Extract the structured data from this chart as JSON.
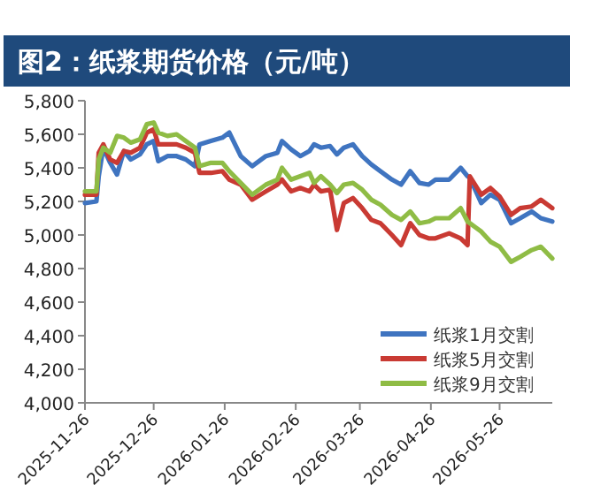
{
  "chart_data": {
    "type": "line",
    "title": "图2：纸浆期货价格（元/吨）",
    "x": [
      "2025-11-26",
      "2025-12-01",
      "2025-12-02",
      "2025-12-04",
      "2025-12-07",
      "2025-12-10",
      "2025-12-13",
      "2025-12-16",
      "2025-12-20",
      "2025-12-23",
      "2025-12-26",
      "2025-12-28",
      "2026-01-01",
      "2026-01-05",
      "2026-01-09",
      "2026-01-13",
      "2026-01-15",
      "2026-01-20",
      "2026-01-25",
      "2026-01-28",
      "2026-02-02",
      "2026-02-07",
      "2026-02-13",
      "2026-02-18",
      "2026-02-20",
      "2026-02-24",
      "2026-02-28",
      "2026-03-04",
      "2026-03-06",
      "2026-03-09",
      "2026-03-13",
      "2026-03-16",
      "2026-03-19",
      "2026-03-23",
      "2026-03-27",
      "2026-03-31",
      "2026-04-04",
      "2026-04-09",
      "2026-04-13",
      "2026-04-17",
      "2026-04-21",
      "2026-04-25",
      "2026-04-28",
      "2026-05-04",
      "2026-05-09",
      "2026-05-12",
      "2026-05-13",
      "2026-05-18",
      "2026-05-22",
      "2026-05-26",
      "2026-05-31",
      "2026-06-04",
      "2026-06-09",
      "2026-06-13",
      "2026-06-18"
    ],
    "series": [
      {
        "name": "纸浆1月交割",
        "color": "#3f74c0",
        "values": [
          5190,
          5200,
          5350,
          5520,
          5430,
          5360,
          5500,
          5450,
          5480,
          5540,
          5560,
          5440,
          5470,
          5470,
          5450,
          5410,
          5540,
          5560,
          5580,
          5610,
          5470,
          5410,
          5470,
          5490,
          5560,
          5510,
          5470,
          5500,
          5540,
          5520,
          5530,
          5480,
          5520,
          5540,
          5470,
          5420,
          5380,
          5330,
          5300,
          5380,
          5310,
          5300,
          5330,
          5330,
          5400,
          5350,
          5340,
          5190,
          5240,
          5210,
          5070,
          5100,
          5140,
          5100,
          5080
        ]
      },
      {
        "name": "纸浆5月交割",
        "color": "#c93a33",
        "values": [
          5240,
          5240,
          5490,
          5540,
          5450,
          5430,
          5500,
          5490,
          5520,
          5610,
          5630,
          5540,
          5540,
          5540,
          5520,
          5490,
          5370,
          5370,
          5380,
          5330,
          5300,
          5210,
          5260,
          5300,
          5330,
          5260,
          5280,
          5260,
          5300,
          5260,
          5270,
          5030,
          5190,
          5220,
          5160,
          5090,
          5070,
          5000,
          4940,
          5070,
          5000,
          4980,
          4980,
          5010,
          4980,
          4940,
          5350,
          5240,
          5280,
          5230,
          5120,
          5160,
          5170,
          5210,
          5160
        ]
      },
      {
        "name": "纸浆9月交割",
        "color": "#8fbc45",
        "values": [
          5260,
          5260,
          5450,
          5520,
          5490,
          5590,
          5580,
          5550,
          5570,
          5660,
          5670,
          5610,
          5590,
          5600,
          5560,
          5520,
          5410,
          5430,
          5430,
          5380,
          5310,
          5240,
          5300,
          5330,
          5400,
          5330,
          5350,
          5370,
          5310,
          5350,
          5300,
          5250,
          5300,
          5310,
          5270,
          5210,
          5180,
          5120,
          5090,
          5140,
          5070,
          5080,
          5100,
          5100,
          5160,
          5080,
          5070,
          5020,
          4960,
          4930,
          4840,
          4870,
          4910,
          4930,
          4860
        ]
      }
    ],
    "xlim": [
      "2025-11-26",
      "2026-06-18"
    ],
    "xticks": [
      "2025-11-26",
      "2025-12-26",
      "2026-01-26",
      "2026-02-26",
      "2026-03-26",
      "2026-04-26",
      "2026-05-26"
    ],
    "ylim": [
      4000,
      5800
    ],
    "yticks": [
      {
        "value": 4000,
        "label": "4,000"
      },
      {
        "value": 4200,
        "label": "4,200"
      },
      {
        "value": 4400,
        "label": "4,400"
      },
      {
        "value": 4600,
        "label": "4,600"
      },
      {
        "value": 4800,
        "label": "4,800"
      },
      {
        "value": 5000,
        "label": "5,000"
      },
      {
        "value": 5200,
        "label": "5,200"
      },
      {
        "value": 5400,
        "label": "5,400"
      },
      {
        "value": 5600,
        "label": "5,600"
      },
      {
        "value": 5800,
        "label": "5,800"
      }
    ],
    "legend": "bottom right"
  }
}
